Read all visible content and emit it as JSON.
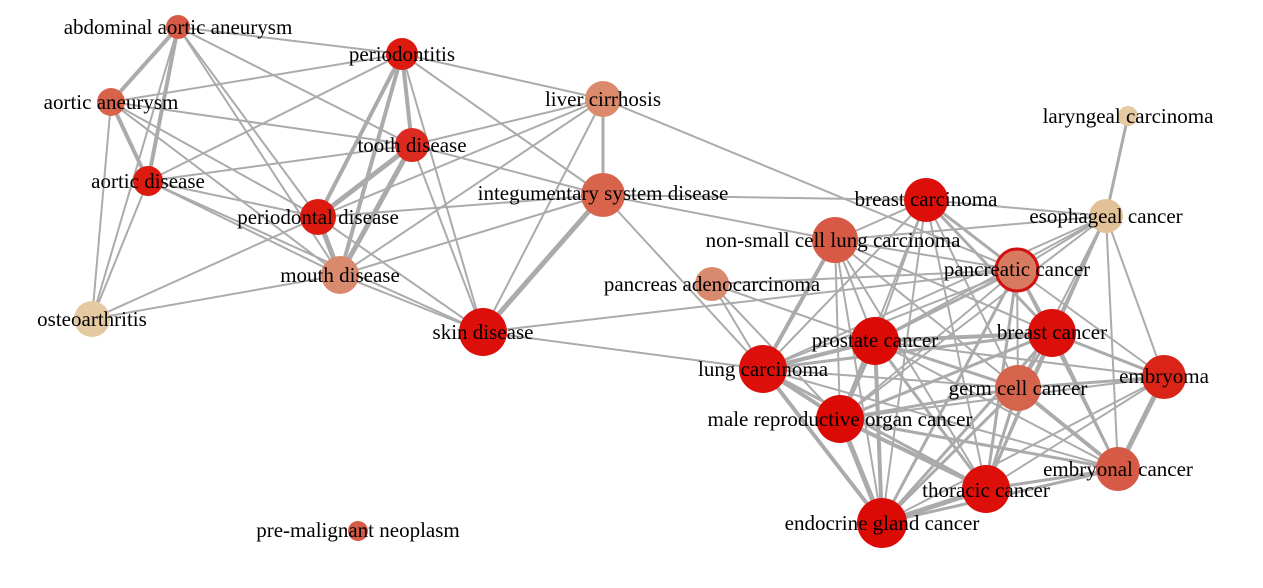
{
  "colors": {
    "edge": "#ababab",
    "highlight_stroke": "#d21111",
    "label": "#000000"
  },
  "nodes": [
    {
      "id": "abdominal-aortic-aneurysm",
      "label": "abdominal aortic aneurysm",
      "color": "#d65a45"
    },
    {
      "id": "periodontitis",
      "label": "periodontitis",
      "color": "#dc1a10"
    },
    {
      "id": "aortic-aneurysm",
      "label": "aortic aneurysm",
      "color": "#d8634c"
    },
    {
      "id": "liver-cirrhosis",
      "label": "liver cirrhosis",
      "color": "#db8a6c"
    },
    {
      "id": "tooth-disease",
      "label": "tooth disease",
      "color": "#dc2a20"
    },
    {
      "id": "laryngeal-carcinoma",
      "label": "laryngeal carcinoma",
      "color": "#e4c9a2"
    },
    {
      "id": "aortic-disease",
      "label": "aortic disease",
      "color": "#dc1a10"
    },
    {
      "id": "integumentary-system-disease",
      "label": "integumentary system disease",
      "color": "#d8644c"
    },
    {
      "id": "breast-carcinoma",
      "label": "breast carcinoma",
      "color": "#dc0f0a"
    },
    {
      "id": "periodontal-disease",
      "label": "periodontal disease",
      "color": "#dc1a10"
    },
    {
      "id": "esophageal-cancer",
      "label": "esophageal cancer",
      "color": "#e3c196"
    },
    {
      "id": "non-small-cell-lung-carcinoma",
      "label": "non-small cell lung carcinoma",
      "color": "#d65a45"
    },
    {
      "id": "pancreatic-cancer",
      "label": "pancreatic cancer",
      "color": "#d87a60"
    },
    {
      "id": "mouth-disease",
      "label": "mouth disease",
      "color": "#d98a6e"
    },
    {
      "id": "pancreas-adenocarcinoma",
      "label": "pancreas adenocarcinoma",
      "color": "#d98a6e"
    },
    {
      "id": "osteoarthritis",
      "label": "osteoarthritis",
      "color": "#e4c9a2"
    },
    {
      "id": "skin-disease",
      "label": "skin disease",
      "color": "#dc0f0a"
    },
    {
      "id": "breast-cancer",
      "label": "breast cancer",
      "color": "#dc0f0a"
    },
    {
      "id": "prostate-cancer",
      "label": "prostate cancer",
      "color": "#dc0a05"
    },
    {
      "id": "lung-carcinoma",
      "label": "lung carcinoma",
      "color": "#dc0f0a"
    },
    {
      "id": "embryoma",
      "label": "embryoma",
      "color": "#da2418"
    },
    {
      "id": "germ-cell-cancer",
      "label": "germ cell cancer",
      "color": "#d6644c"
    },
    {
      "id": "male-reproductive-organ-cancer",
      "label": "male reproductive organ cancer",
      "color": "#dc0a05"
    },
    {
      "id": "embryonal-cancer",
      "label": "embryonal cancer",
      "color": "#d65a45"
    },
    {
      "id": "thoracic-cancer",
      "label": "thoracic cancer",
      "color": "#dc0f0a"
    },
    {
      "id": "endocrine-gland-cancer",
      "label": "endocrine gland cancer",
      "color": "#dc0a05"
    },
    {
      "id": "pre-malignant-neoplasm",
      "label": "pre-malignant neoplasm",
      "color": "#d65a45"
    }
  ],
  "edges": [
    [
      "abdominal-aortic-aneurysm",
      "aortic-aneurysm",
      4
    ],
    [
      "abdominal-aortic-aneurysm",
      "aortic-disease",
      4
    ],
    [
      "abdominal-aortic-aneurysm",
      "periodontitis",
      2
    ],
    [
      "abdominal-aortic-aneurysm",
      "periodontal-disease",
      2
    ],
    [
      "abdominal-aortic-aneurysm",
      "osteoarthritis",
      2
    ],
    [
      "abdominal-aortic-aneurysm",
      "tooth-disease",
      2
    ],
    [
      "abdominal-aortic-aneurysm",
      "mouth-disease",
      2
    ],
    [
      "aortic-aneurysm",
      "aortic-disease",
      4
    ],
    [
      "aortic-aneurysm",
      "periodontitis",
      2
    ],
    [
      "aortic-aneurysm",
      "periodontal-disease",
      2
    ],
    [
      "aortic-aneurysm",
      "osteoarthritis",
      2
    ],
    [
      "aortic-aneurysm",
      "tooth-disease",
      2
    ],
    [
      "aortic-aneurysm",
      "mouth-disease",
      2
    ],
    [
      "aortic-disease",
      "osteoarthritis",
      2
    ],
    [
      "aortic-disease",
      "periodontal-disease",
      2
    ],
    [
      "aortic-disease",
      "periodontitis",
      2
    ],
    [
      "aortic-disease",
      "tooth-disease",
      2
    ],
    [
      "aortic-disease",
      "mouth-disease",
      2
    ],
    [
      "aortic-disease",
      "skin-disease",
      2
    ],
    [
      "osteoarthritis",
      "periodontal-disease",
      2
    ],
    [
      "osteoarthritis",
      "mouth-disease",
      2
    ],
    [
      "periodontitis",
      "tooth-disease",
      4
    ],
    [
      "periodontitis",
      "periodontal-disease",
      4
    ],
    [
      "periodontitis",
      "mouth-disease",
      4
    ],
    [
      "periodontitis",
      "skin-disease",
      2
    ],
    [
      "periodontitis",
      "integumentary-system-disease",
      2
    ],
    [
      "periodontitis",
      "liver-cirrhosis",
      2
    ],
    [
      "tooth-disease",
      "periodontal-disease",
      5
    ],
    [
      "tooth-disease",
      "mouth-disease",
      5
    ],
    [
      "tooth-disease",
      "skin-disease",
      2
    ],
    [
      "tooth-disease",
      "integumentary-system-disease",
      2
    ],
    [
      "tooth-disease",
      "liver-cirrhosis",
      2
    ],
    [
      "periodontal-disease",
      "mouth-disease",
      5
    ],
    [
      "periodontal-disease",
      "skin-disease",
      2
    ],
    [
      "periodontal-disease",
      "integumentary-system-disease",
      2
    ],
    [
      "periodontal-disease",
      "liver-cirrhosis",
      2
    ],
    [
      "mouth-disease",
      "skin-disease",
      2
    ],
    [
      "mouth-disease",
      "integumentary-system-disease",
      2
    ],
    [
      "mouth-disease",
      "liver-cirrhosis",
      2
    ],
    [
      "skin-disease",
      "integumentary-system-disease",
      5
    ],
    [
      "skin-disease",
      "liver-cirrhosis",
      2
    ],
    [
      "skin-disease",
      "lung-carcinoma",
      2
    ],
    [
      "skin-disease",
      "pancreatic-cancer",
      2
    ],
    [
      "liver-cirrhosis",
      "integumentary-system-disease",
      3
    ],
    [
      "liver-cirrhosis",
      "pancreatic-cancer",
      2
    ],
    [
      "integumentary-system-disease",
      "lung-carcinoma",
      2
    ],
    [
      "integumentary-system-disease",
      "breast-carcinoma",
      2
    ],
    [
      "integumentary-system-disease",
      "non-small-cell-lung-carcinoma",
      2
    ],
    [
      "laryngeal-carcinoma",
      "esophageal-cancer",
      3
    ],
    [
      "esophageal-cancer",
      "breast-carcinoma",
      2
    ],
    [
      "esophageal-cancer",
      "non-small-cell-lung-carcinoma",
      2
    ],
    [
      "esophageal-cancer",
      "pancreatic-cancer",
      2
    ],
    [
      "esophageal-cancer",
      "breast-cancer",
      3
    ],
    [
      "esophageal-cancer",
      "prostate-cancer",
      2
    ],
    [
      "esophageal-cancer",
      "lung-carcinoma",
      2
    ],
    [
      "esophageal-cancer",
      "germ-cell-cancer",
      2
    ],
    [
      "esophageal-cancer",
      "embryoma",
      2
    ],
    [
      "esophageal-cancer",
      "male-reproductive-organ-cancer",
      2
    ],
    [
      "esophageal-cancer",
      "thoracic-cancer",
      2
    ],
    [
      "esophageal-cancer",
      "embryonal-cancer",
      2
    ],
    [
      "breast-carcinoma",
      "non-small-cell-lung-carcinoma",
      2
    ],
    [
      "breast-carcinoma",
      "pancreatic-cancer",
      3
    ],
    [
      "breast-carcinoma",
      "breast-cancer",
      3
    ],
    [
      "breast-carcinoma",
      "prostate-cancer",
      2
    ],
    [
      "breast-carcinoma",
      "lung-carcinoma",
      2
    ],
    [
      "breast-carcinoma",
      "germ-cell-cancer",
      2
    ],
    [
      "breast-carcinoma",
      "male-reproductive-organ-cancer",
      2
    ],
    [
      "breast-carcinoma",
      "thoracic-cancer",
      2
    ],
    [
      "breast-carcinoma",
      "endocrine-gland-cancer",
      2
    ],
    [
      "non-small-cell-lung-carcinoma",
      "pancreatic-cancer",
      2
    ],
    [
      "non-small-cell-lung-carcinoma",
      "lung-carcinoma",
      4
    ],
    [
      "non-small-cell-lung-carcinoma",
      "prostate-cancer",
      2
    ],
    [
      "non-small-cell-lung-carcinoma",
      "breast-cancer",
      2
    ],
    [
      "non-small-cell-lung-carcinoma",
      "male-reproductive-organ-cancer",
      2
    ],
    [
      "non-small-cell-lung-carcinoma",
      "thoracic-cancer",
      2
    ],
    [
      "non-small-cell-lung-carcinoma",
      "endocrine-gland-cancer",
      2
    ],
    [
      "non-small-cell-lung-carcinoma",
      "germ-cell-cancer",
      2
    ],
    [
      "pancreatic-cancer",
      "breast-cancer",
      3
    ],
    [
      "pancreatic-cancer",
      "prostate-cancer",
      3
    ],
    [
      "pancreatic-cancer",
      "lung-carcinoma",
      2
    ],
    [
      "pancreatic-cancer",
      "germ-cell-cancer",
      2
    ],
    [
      "pancreatic-cancer",
      "male-reproductive-organ-cancer",
      2
    ],
    [
      "pancreatic-cancer",
      "thoracic-cancer",
      3
    ],
    [
      "pancreatic-cancer",
      "endocrine-gland-cancer",
      3
    ],
    [
      "pancreatic-cancer",
      "embryoma",
      2
    ],
    [
      "pancreatic-cancer",
      "embryonal-cancer",
      2
    ],
    [
      "pancreas-adenocarcinoma",
      "lung-carcinoma",
      2
    ],
    [
      "pancreas-adenocarcinoma",
      "prostate-cancer",
      2
    ],
    [
      "pancreas-adenocarcinoma",
      "pancreatic-cancer",
      2
    ],
    [
      "pancreas-adenocarcinoma",
      "male-reproductive-organ-cancer",
      2
    ],
    [
      "breast-cancer",
      "prostate-cancer",
      4
    ],
    [
      "breast-cancer",
      "lung-carcinoma",
      3
    ],
    [
      "breast-cancer",
      "germ-cell-cancer",
      3
    ],
    [
      "breast-cancer",
      "embryoma",
      3
    ],
    [
      "breast-cancer",
      "male-reproductive-organ-cancer",
      3
    ],
    [
      "breast-cancer",
      "embryonal-cancer",
      3
    ],
    [
      "breast-cancer",
      "thoracic-cancer",
      3
    ],
    [
      "breast-cancer",
      "endocrine-gland-cancer",
      3
    ],
    [
      "prostate-cancer",
      "lung-carcinoma",
      4
    ],
    [
      "prostate-cancer",
      "germ-cell-cancer",
      3
    ],
    [
      "prostate-cancer",
      "embryoma",
      2
    ],
    [
      "prostate-cancer",
      "male-reproductive-organ-cancer",
      5
    ],
    [
      "prostate-cancer",
      "embryonal-cancer",
      2
    ],
    [
      "prostate-cancer",
      "thoracic-cancer",
      3
    ],
    [
      "prostate-cancer",
      "endocrine-gland-cancer",
      4
    ],
    [
      "lung-carcinoma",
      "germ-cell-cancer",
      2
    ],
    [
      "lung-carcinoma",
      "male-reproductive-organ-cancer",
      4
    ],
    [
      "lung-carcinoma",
      "thoracic-cancer",
      3
    ],
    [
      "lung-carcinoma",
      "endocrine-gland-cancer",
      4
    ],
    [
      "lung-carcinoma",
      "embryonal-cancer",
      2
    ],
    [
      "germ-cell-cancer",
      "embryoma",
      3
    ],
    [
      "germ-cell-cancer",
      "male-reproductive-organ-cancer",
      3
    ],
    [
      "germ-cell-cancer",
      "embryonal-cancer",
      4
    ],
    [
      "germ-cell-cancer",
      "thoracic-cancer",
      3
    ],
    [
      "germ-cell-cancer",
      "endocrine-gland-cancer",
      3
    ],
    [
      "embryoma",
      "embryonal-cancer",
      5
    ],
    [
      "embryoma",
      "male-reproductive-organ-cancer",
      2
    ],
    [
      "embryoma",
      "thoracic-cancer",
      2
    ],
    [
      "embryoma",
      "endocrine-gland-cancer",
      2
    ],
    [
      "male-reproductive-organ-cancer",
      "embryonal-cancer",
      3
    ],
    [
      "male-reproductive-organ-cancer",
      "thoracic-cancer",
      4
    ],
    [
      "male-reproductive-organ-cancer",
      "endocrine-gland-cancer",
      5
    ],
    [
      "embryonal-cancer",
      "thoracic-cancer",
      3
    ],
    [
      "embryonal-cancer",
      "endocrine-gland-cancer",
      3
    ],
    [
      "thoracic-cancer",
      "endocrine-gland-cancer",
      5
    ]
  ]
}
